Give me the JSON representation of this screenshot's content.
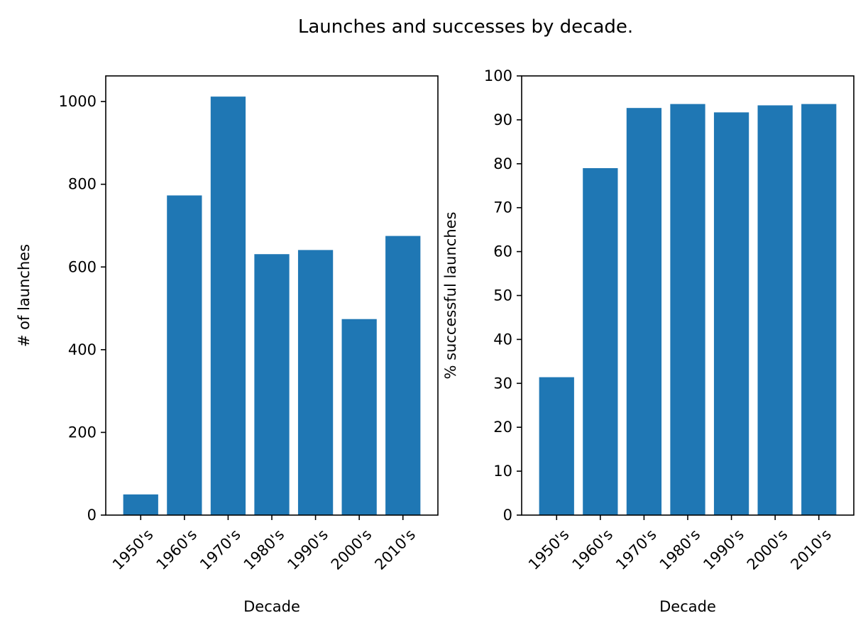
{
  "title": "Launches and successes by decade.",
  "colors": {
    "bar": "#1f77b4",
    "axes": "#000000"
  },
  "chart_data": [
    {
      "type": "bar",
      "categories": [
        "1950's",
        "1960's",
        "1970's",
        "1980's",
        "1990's",
        "2000's",
        "2010's"
      ],
      "values": [
        50,
        773,
        1012,
        631,
        641,
        474,
        675
      ],
      "xlabel": "Decade",
      "ylabel": "# of launches",
      "ylim": [
        0,
        1062
      ],
      "yticks": [
        0,
        200,
        400,
        600,
        800,
        1000
      ],
      "grid": false,
      "xtick_rotation": 45
    },
    {
      "type": "bar",
      "categories": [
        "1950's",
        "1960's",
        "1970's",
        "1980's",
        "1990's",
        "2000's",
        "2010's"
      ],
      "values": [
        31.4,
        79.0,
        92.7,
        93.6,
        91.7,
        93.3,
        93.6
      ],
      "xlabel": "Decade",
      "ylabel": "% successful launches",
      "ylim": [
        0,
        100
      ],
      "yticks": [
        0,
        10,
        20,
        30,
        40,
        50,
        60,
        70,
        80,
        90,
        100
      ],
      "grid": false,
      "xtick_rotation": 45
    }
  ]
}
